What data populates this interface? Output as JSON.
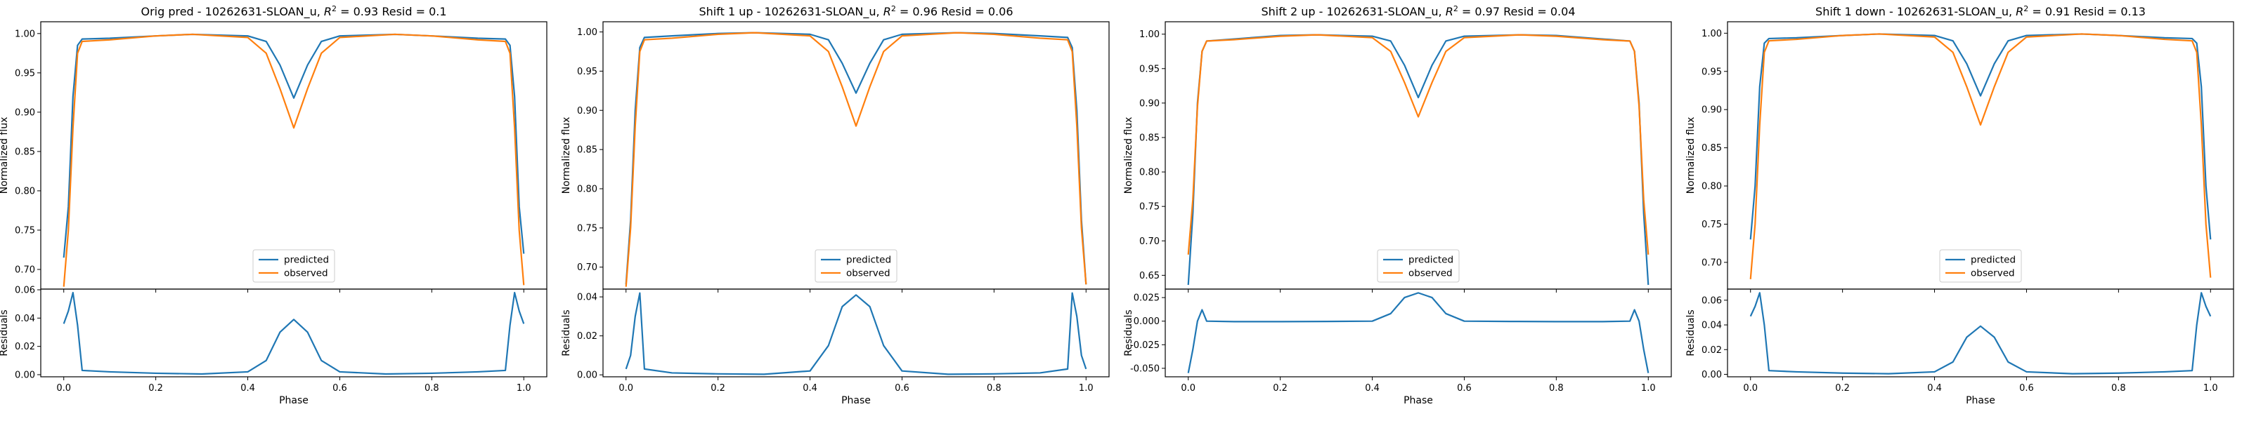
{
  "figure": {
    "panels": [
      {
        "title": "Orig pred - 10262631-SLOAN_u, $R^2 = 0.93$ Resid = 0.1",
        "title_parts": [
          "Orig pred - 10262631-SLOAN_u, ",
          "R",
          "2",
          " = 0.93 Resid = 0.1"
        ]
      },
      {
        "title": "Shift 1 up - 10262631-SLOAN_u, $R^2 = 0.96$ Resid = 0.06",
        "title_parts": [
          "Shift 1 up - 10262631-SLOAN_u, ",
          "R",
          "2",
          " = 0.96 Resid = 0.06"
        ]
      },
      {
        "title": "Shift 2 up - 10262631-SLOAN_u, $R^2 = 0.97$ Resid = 0.04",
        "title_parts": [
          "Shift 2 up - 10262631-SLOAN_u, ",
          "R",
          "2",
          " = 0.97 Resid = 0.04"
        ]
      },
      {
        "title": "Shift 1 down - 10262631-SLOAN_u, $R^2 = 0.91$ Resid = 0.13",
        "title_parts": [
          "Shift 1 down - 10262631-SLOAN_u, ",
          "R",
          "2",
          " = 0.91 Resid = 0.13"
        ]
      }
    ]
  },
  "chart_data": [
    {
      "type": "line",
      "title": "Orig pred - 10262631-SLOAN_u, R^2 = 0.93 Resid = 0.1",
      "xlabel": "Phase",
      "ylabel": "Normalized flux",
      "xlim": [
        -0.05,
        1.05
      ],
      "ylim": [
        0.675,
        1.015
      ],
      "yticks": [
        "0.70",
        "0.75",
        "0.80",
        "0.85",
        "0.90",
        "0.95",
        "1.00"
      ],
      "xticks": [
        "0.0",
        "0.2",
        "0.4",
        "0.6",
        "0.8",
        "1.0"
      ],
      "legend": "lower center",
      "series": [
        {
          "name": "predicted",
          "color": "#1f77b4",
          "x": [
            0.0,
            0.01,
            0.02,
            0.03,
            0.04,
            0.1,
            0.2,
            0.28,
            0.4,
            0.44,
            0.47,
            0.5,
            0.53,
            0.56,
            0.6,
            0.72,
            0.8,
            0.9,
            0.96,
            0.97,
            0.98,
            0.99,
            1.0
          ],
          "y": [
            0.715,
            0.78,
            0.92,
            0.985,
            0.993,
            0.994,
            0.997,
            0.999,
            0.997,
            0.99,
            0.96,
            0.918,
            0.96,
            0.99,
            0.997,
            0.999,
            0.997,
            0.994,
            0.993,
            0.985,
            0.92,
            0.78,
            0.72
          ]
        },
        {
          "name": "observed",
          "color": "#ff7f0e",
          "x": [
            0.0,
            0.01,
            0.02,
            0.03,
            0.04,
            0.1,
            0.2,
            0.28,
            0.4,
            0.44,
            0.47,
            0.5,
            0.53,
            0.56,
            0.6,
            0.72,
            0.8,
            0.9,
            0.96,
            0.97,
            0.98,
            0.99,
            1.0
          ],
          "y": [
            0.678,
            0.75,
            0.88,
            0.975,
            0.99,
            0.992,
            0.997,
            0.999,
            0.995,
            0.975,
            0.93,
            0.88,
            0.93,
            0.975,
            0.995,
            0.999,
            0.997,
            0.992,
            0.99,
            0.975,
            0.88,
            0.75,
            0.68
          ]
        }
      ]
    },
    {
      "type": "line",
      "xlabel": "Phase",
      "ylabel": "Residuals",
      "xlim": [
        -0.05,
        1.05
      ],
      "ylim": [
        -0.0015,
        0.0605
      ],
      "yticks": [
        "0.00",
        "0.02",
        "0.04",
        "0.06"
      ],
      "xticks": [
        "0.0",
        "0.2",
        "0.4",
        "0.6",
        "0.8",
        "1.0"
      ],
      "series": [
        {
          "name": "",
          "color": "#1f77b4",
          "x": [
            0.0,
            0.01,
            0.02,
            0.03,
            0.04,
            0.1,
            0.2,
            0.3,
            0.4,
            0.44,
            0.47,
            0.5,
            0.53,
            0.56,
            0.6,
            0.7,
            0.8,
            0.9,
            0.96,
            0.97,
            0.98,
            0.99,
            1.0
          ],
          "y": [
            0.036,
            0.045,
            0.058,
            0.035,
            0.003,
            0.002,
            0.001,
            0.0005,
            0.002,
            0.01,
            0.03,
            0.039,
            0.03,
            0.01,
            0.002,
            0.0005,
            0.001,
            0.002,
            0.003,
            0.035,
            0.058,
            0.045,
            0.036
          ]
        }
      ]
    },
    {
      "type": "line",
      "title": "Shift 1 up - 10262631-SLOAN_u, R^2 = 0.96 Resid = 0.06",
      "xlabel": "Phase",
      "ylabel": "Normalized flux",
      "xlim": [
        -0.05,
        1.05
      ],
      "ylim": [
        0.672,
        1.013
      ],
      "yticks": [
        "0.70",
        "0.75",
        "0.80",
        "0.85",
        "0.90",
        "0.95",
        "1.00"
      ],
      "xticks": [
        "0.0",
        "0.2",
        "0.4",
        "0.6",
        "0.8",
        "1.0"
      ],
      "legend": "lower center",
      "series": [
        {
          "name": "predicted",
          "color": "#1f77b4",
          "x": [
            0.0,
            0.01,
            0.02,
            0.03,
            0.04,
            0.1,
            0.2,
            0.28,
            0.4,
            0.44,
            0.47,
            0.5,
            0.53,
            0.56,
            0.6,
            0.72,
            0.8,
            0.9,
            0.96,
            0.97,
            0.98,
            0.99,
            1.0
          ],
          "y": [
            0.678,
            0.76,
            0.9,
            0.98,
            0.993,
            0.995,
            0.998,
            0.999,
            0.997,
            0.99,
            0.96,
            0.922,
            0.96,
            0.99,
            0.997,
            0.999,
            0.998,
            0.995,
            0.993,
            0.98,
            0.9,
            0.76,
            0.678
          ]
        },
        {
          "name": "observed",
          "color": "#ff7f0e",
          "x": [
            0.0,
            0.01,
            0.02,
            0.03,
            0.04,
            0.1,
            0.2,
            0.28,
            0.4,
            0.44,
            0.47,
            0.5,
            0.53,
            0.56,
            0.6,
            0.72,
            0.8,
            0.9,
            0.96,
            0.97,
            0.98,
            0.99,
            1.0
          ],
          "y": [
            0.675,
            0.75,
            0.88,
            0.975,
            0.99,
            0.992,
            0.997,
            0.999,
            0.995,
            0.975,
            0.93,
            0.88,
            0.93,
            0.975,
            0.995,
            0.999,
            0.997,
            0.992,
            0.99,
            0.975,
            0.88,
            0.75,
            0.678
          ]
        }
      ]
    },
    {
      "type": "line",
      "xlabel": "Phase",
      "ylabel": "Residuals",
      "xlim": [
        -0.05,
        1.05
      ],
      "ylim": [
        -0.001,
        0.044
      ],
      "yticks": [
        "0.00",
        "0.02",
        "0.04"
      ],
      "xticks": [
        "0.0",
        "0.2",
        "0.4",
        "0.6",
        "0.8",
        "1.0"
      ],
      "series": [
        {
          "name": "",
          "color": "#1f77b4",
          "x": [
            0.0,
            0.01,
            0.02,
            0.03,
            0.04,
            0.1,
            0.2,
            0.3,
            0.4,
            0.44,
            0.47,
            0.5,
            0.53,
            0.56,
            0.6,
            0.7,
            0.8,
            0.9,
            0.96,
            0.97,
            0.98,
            0.99,
            1.0
          ],
          "y": [
            0.003,
            0.01,
            0.03,
            0.042,
            0.003,
            0.001,
            0.0005,
            0.0003,
            0.002,
            0.015,
            0.035,
            0.041,
            0.035,
            0.015,
            0.002,
            0.0003,
            0.0005,
            0.001,
            0.003,
            0.042,
            0.03,
            0.01,
            0.003
          ]
        }
      ]
    },
    {
      "type": "line",
      "title": "Shift 2 up - 10262631-SLOAN_u, R^2 = 0.97 Resid = 0.04",
      "xlabel": "Phase",
      "ylabel": "Normalized flux",
      "xlim": [
        -0.05,
        1.05
      ],
      "ylim": [
        0.63,
        1.018
      ],
      "yticks": [
        "0.65",
        "0.70",
        "0.75",
        "0.80",
        "0.85",
        "0.90",
        "0.95",
        "1.00"
      ],
      "xticks": [
        "0.0",
        "0.2",
        "0.4",
        "0.6",
        "0.8",
        "1.0"
      ],
      "legend": "lower center",
      "series": [
        {
          "name": "predicted",
          "color": "#1f77b4",
          "x": [
            0.0,
            0.01,
            0.02,
            0.03,
            0.04,
            0.1,
            0.2,
            0.28,
            0.4,
            0.44,
            0.47,
            0.5,
            0.53,
            0.56,
            0.6,
            0.72,
            0.8,
            0.9,
            0.96,
            0.97,
            0.98,
            0.99,
            1.0
          ],
          "y": [
            0.636,
            0.74,
            0.9,
            0.975,
            0.99,
            0.993,
            0.998,
            0.999,
            0.997,
            0.99,
            0.955,
            0.908,
            0.955,
            0.99,
            0.997,
            0.999,
            0.998,
            0.993,
            0.99,
            0.975,
            0.9,
            0.74,
            0.636
          ]
        },
        {
          "name": "observed",
          "color": "#ff7f0e",
          "x": [
            0.0,
            0.01,
            0.02,
            0.03,
            0.04,
            0.1,
            0.2,
            0.28,
            0.4,
            0.44,
            0.47,
            0.5,
            0.53,
            0.56,
            0.6,
            0.72,
            0.8,
            0.9,
            0.96,
            0.97,
            0.98,
            0.99,
            1.0
          ],
          "y": [
            0.68,
            0.76,
            0.895,
            0.975,
            0.99,
            0.992,
            0.997,
            0.999,
            0.995,
            0.975,
            0.93,
            0.88,
            0.93,
            0.975,
            0.995,
            0.999,
            0.997,
            0.992,
            0.99,
            0.975,
            0.895,
            0.76,
            0.68
          ]
        }
      ]
    },
    {
      "type": "line",
      "xlabel": "Phase",
      "ylabel": "Residuals",
      "xlim": [
        -0.05,
        1.05
      ],
      "ylim": [
        -0.059,
        0.034
      ],
      "yticks": [
        "-0.050",
        "-0.025",
        "0.000",
        "0.025"
      ],
      "xticks": [
        "0.0",
        "0.2",
        "0.4",
        "0.6",
        "0.8",
        "1.0"
      ],
      "series": [
        {
          "name": "",
          "color": "#1f77b4",
          "x": [
            0.0,
            0.01,
            0.02,
            0.03,
            0.04,
            0.1,
            0.2,
            0.3,
            0.4,
            0.44,
            0.47,
            0.5,
            0.53,
            0.56,
            0.6,
            0.7,
            0.8,
            0.9,
            0.96,
            0.97,
            0.98,
            0.99,
            1.0
          ],
          "y": [
            -0.055,
            -0.03,
            0.0,
            0.012,
            0.0,
            -0.0005,
            -0.0005,
            -0.0003,
            0.0,
            0.008,
            0.025,
            0.03,
            0.025,
            0.008,
            0.0,
            -0.0003,
            -0.0005,
            -0.0005,
            0.0,
            0.012,
            0.0,
            -0.03,
            -0.055
          ]
        }
      ]
    },
    {
      "type": "line",
      "title": "Shift 1 down - 10262631-SLOAN_u, R^2 = 0.91 Resid = 0.13",
      "xlabel": "Phase",
      "ylabel": "Normalized flux",
      "xlim": [
        -0.05,
        1.05
      ],
      "ylim": [
        0.665,
        1.015
      ],
      "yticks": [
        "0.70",
        "0.75",
        "0.80",
        "0.85",
        "0.90",
        "0.95",
        "1.00"
      ],
      "xticks": [
        "0.0",
        "0.2",
        "0.4",
        "0.6",
        "0.8",
        "1.0"
      ],
      "legend": "lower center",
      "series": [
        {
          "name": "predicted",
          "color": "#1f77b4",
          "x": [
            0.0,
            0.01,
            0.02,
            0.03,
            0.04,
            0.1,
            0.2,
            0.28,
            0.4,
            0.44,
            0.47,
            0.5,
            0.53,
            0.56,
            0.6,
            0.72,
            0.8,
            0.9,
            0.96,
            0.97,
            0.98,
            0.99,
            1.0
          ],
          "y": [
            0.73,
            0.8,
            0.93,
            0.987,
            0.993,
            0.994,
            0.997,
            0.999,
            0.997,
            0.99,
            0.96,
            0.918,
            0.96,
            0.99,
            0.997,
            0.999,
            0.997,
            0.994,
            0.993,
            0.987,
            0.93,
            0.8,
            0.73
          ]
        },
        {
          "name": "observed",
          "color": "#ff7f0e",
          "x": [
            0.0,
            0.01,
            0.02,
            0.03,
            0.04,
            0.1,
            0.2,
            0.28,
            0.4,
            0.44,
            0.47,
            0.5,
            0.53,
            0.56,
            0.6,
            0.72,
            0.8,
            0.9,
            0.96,
            0.97,
            0.98,
            0.99,
            1.0
          ],
          "y": [
            0.678,
            0.75,
            0.88,
            0.975,
            0.99,
            0.992,
            0.997,
            0.999,
            0.995,
            0.975,
            0.93,
            0.88,
            0.93,
            0.975,
            0.995,
            0.999,
            0.997,
            0.992,
            0.99,
            0.975,
            0.88,
            0.75,
            0.68
          ]
        }
      ]
    },
    {
      "type": "line",
      "xlabel": "Phase",
      "ylabel": "Residuals",
      "xlim": [
        -0.05,
        1.05
      ],
      "ylim": [
        -0.002,
        0.069
      ],
      "yticks": [
        "0.00",
        "0.02",
        "0.04",
        "0.06"
      ],
      "xticks": [
        "0.0",
        "0.2",
        "0.4",
        "0.6",
        "0.8",
        "1.0"
      ],
      "series": [
        {
          "name": "",
          "color": "#1f77b4",
          "x": [
            0.0,
            0.01,
            0.02,
            0.03,
            0.04,
            0.1,
            0.2,
            0.3,
            0.4,
            0.44,
            0.47,
            0.5,
            0.53,
            0.56,
            0.6,
            0.7,
            0.8,
            0.9,
            0.96,
            0.97,
            0.98,
            0.99,
            1.0
          ],
          "y": [
            0.047,
            0.055,
            0.066,
            0.04,
            0.003,
            0.002,
            0.001,
            0.0005,
            0.002,
            0.01,
            0.03,
            0.039,
            0.03,
            0.01,
            0.002,
            0.0005,
            0.001,
            0.002,
            0.003,
            0.04,
            0.066,
            0.055,
            0.047
          ]
        }
      ]
    }
  ]
}
